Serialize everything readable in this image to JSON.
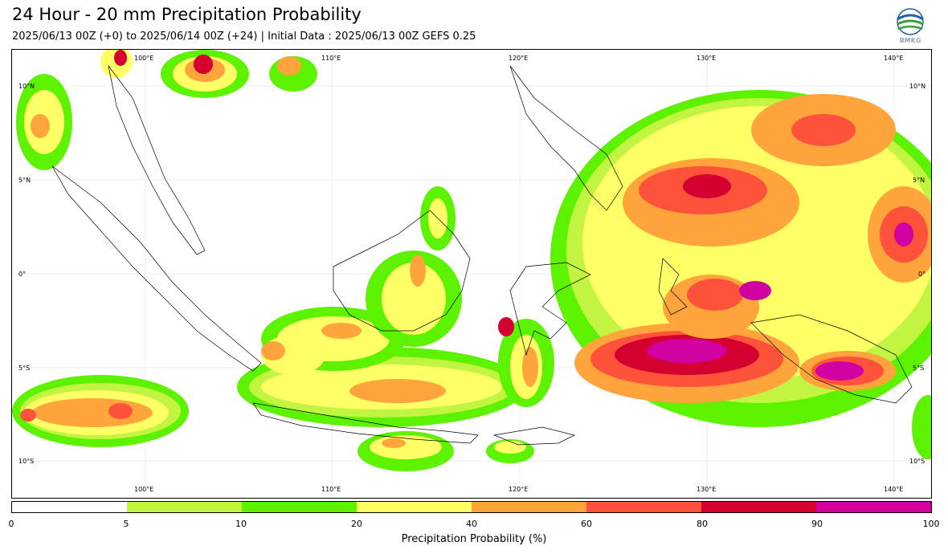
{
  "header": {
    "title": "24 Hour - 20 mm Precipitation Probability",
    "subtitle": "2025/06/13 00Z (+0) to 2025/06/14 00Z (+24) | Initial Data : 2025/06/13 00Z GEFS 0.25",
    "logo_text": "BMKG"
  },
  "map": {
    "lon_labels_top": [
      "100°E",
      "110°E",
      "120°E",
      "130°E",
      "140°E"
    ],
    "lon_labels_bottom": [
      "100°E",
      "110°E",
      "120°E",
      "130°E",
      "140°E"
    ],
    "lat_labels_left": [
      "10°N",
      "5°N",
      "0°",
      "5°S",
      "10°S"
    ],
    "lat_labels_right": [
      "10°N",
      "5°N",
      "0°",
      "5°S",
      "10°S"
    ]
  },
  "colorbar": {
    "colors": [
      "#ffffff",
      "#c2f542",
      "#5cf200",
      "#ffff66",
      "#ffa53b",
      "#ff523b",
      "#d4002f",
      "#d100a0"
    ],
    "ticks": [
      "0",
      "5",
      "10",
      "20",
      "40",
      "60",
      "80",
      "90",
      "100"
    ],
    "label": "Precipitation Probability (%)"
  }
}
